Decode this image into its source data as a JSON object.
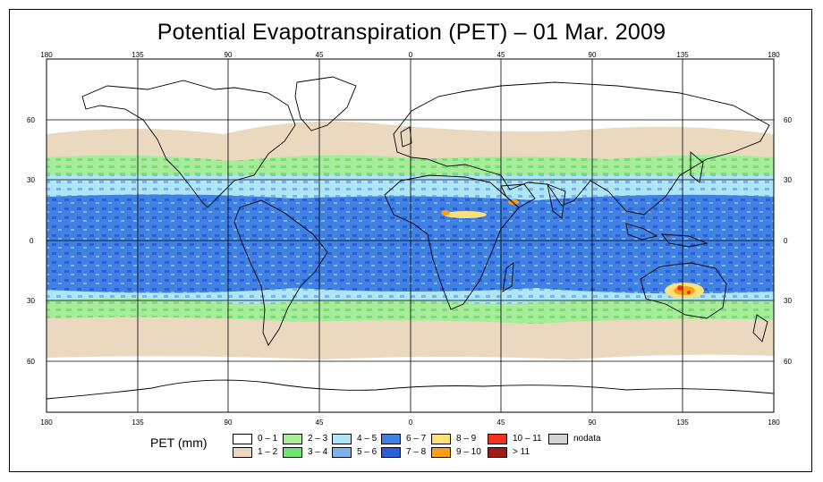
{
  "title": "Potential Evapotranspiration (PET) – 01 Mar. 2009",
  "axes": {
    "lon_ticks": [
      "180",
      "135",
      "90",
      "45",
      "0",
      "45",
      "90",
      "135",
      "180"
    ],
    "lat_ticks": [
      "60",
      "30",
      "0",
      "30",
      "60"
    ]
  },
  "legend": {
    "title": "PET (mm)",
    "items": [
      {
        "label": "0 – 1",
        "color": "#ffffff"
      },
      {
        "label": "1 – 2",
        "color": "#ead9bf"
      },
      {
        "label": "2 – 3",
        "color": "#a6ec9b"
      },
      {
        "label": "3 – 4",
        "color": "#6fe46f"
      },
      {
        "label": "4 – 5",
        "color": "#aee6f6"
      },
      {
        "label": "5 – 6",
        "color": "#7cb3ee"
      },
      {
        "label": "6 – 7",
        "color": "#3f82e2"
      },
      {
        "label": "7 – 8",
        "color": "#2a5fd8"
      },
      {
        "label": "8 – 9",
        "color": "#fbe17a"
      },
      {
        "label": "9 – 10",
        "color": "#f99f16"
      },
      {
        "label": "10 – 11",
        "color": "#f5311b"
      },
      {
        "label": "> 11",
        "color": "#a01a14"
      },
      {
        "label": "nodata",
        "color": "#d3d3d3"
      }
    ]
  }
}
